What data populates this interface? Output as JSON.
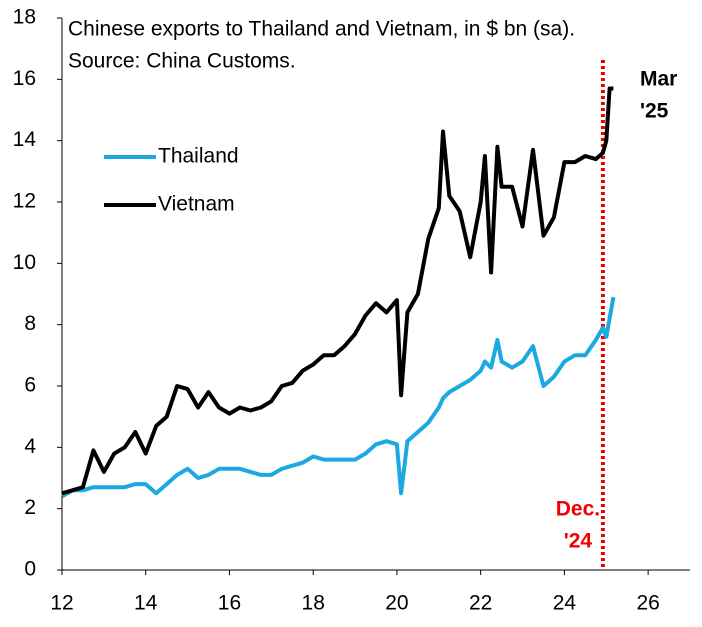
{
  "chart_data": {
    "type": "line",
    "title": "Chinese exports to Thailand and Vietnam, in $ bn (sa).",
    "source": "Source: China Customs.",
    "x": [
      12,
      12.25,
      12.5,
      12.75,
      13,
      13.25,
      13.5,
      13.75,
      14,
      14.25,
      14.5,
      14.75,
      15,
      15.25,
      15.5,
      15.75,
      16,
      16.25,
      16.5,
      16.75,
      17,
      17.25,
      17.5,
      17.75,
      18,
      18.25,
      18.5,
      18.75,
      19,
      19.25,
      19.5,
      19.75,
      20,
      20.1,
      20.25,
      20.5,
      20.75,
      21,
      21.1,
      21.25,
      21.5,
      21.75,
      22,
      22.1,
      22.25,
      22.4,
      22.5,
      22.75,
      23,
      23.25,
      23.5,
      23.75,
      24,
      24.25,
      24.5,
      24.75,
      24.92,
      25,
      25.08,
      25.17
    ],
    "series": [
      {
        "name": "Thailand",
        "color": "#1ba9e1",
        "values": [
          2.4,
          2.6,
          2.6,
          2.7,
          2.7,
          2.7,
          2.7,
          2.8,
          2.8,
          2.5,
          2.8,
          3.1,
          3.3,
          3.0,
          3.1,
          3.3,
          3.3,
          3.3,
          3.2,
          3.1,
          3.1,
          3.3,
          3.4,
          3.5,
          3.7,
          3.6,
          3.6,
          3.6,
          3.6,
          3.8,
          4.1,
          4.2,
          4.1,
          2.5,
          4.2,
          4.5,
          4.8,
          5.3,
          5.6,
          5.8,
          6.0,
          6.2,
          6.5,
          6.8,
          6.6,
          7.5,
          6.8,
          6.6,
          6.8,
          7.3,
          6.0,
          6.3,
          6.8,
          7.0,
          7.0,
          7.5,
          7.9,
          7.6,
          8.2,
          8.9
        ]
      },
      {
        "name": "Vietnam",
        "color": "#000000",
        "values": [
          2.5,
          2.6,
          2.7,
          3.9,
          3.2,
          3.8,
          4.0,
          4.5,
          3.8,
          4.7,
          5.0,
          6.0,
          5.9,
          5.3,
          5.8,
          5.3,
          5.1,
          5.3,
          5.2,
          5.3,
          5.5,
          6.0,
          6.1,
          6.5,
          6.7,
          7.0,
          7.0,
          7.3,
          7.7,
          8.3,
          8.7,
          8.4,
          8.8,
          5.7,
          8.4,
          9.0,
          10.8,
          11.8,
          14.3,
          12.2,
          11.7,
          10.2,
          12.0,
          13.5,
          9.7,
          13.8,
          12.5,
          12.5,
          11.2,
          13.7,
          10.9,
          11.5,
          13.3,
          13.3,
          13.5,
          13.4,
          13.6,
          14.0,
          15.7,
          15.7
        ]
      }
    ],
    "xlim": [
      12,
      27
    ],
    "xticks": [
      12,
      14,
      16,
      18,
      20,
      22,
      24,
      26
    ],
    "ylim": [
      0,
      18
    ],
    "yticks": [
      0,
      2,
      4,
      6,
      8,
      10,
      12,
      14,
      16,
      18
    ],
    "grid": false,
    "legend": "upper left",
    "vline": {
      "x": 24.92,
      "color": "#ee0000",
      "label": [
        "Dec.",
        "'24"
      ]
    },
    "end_label": [
      "Mar",
      "'25"
    ]
  }
}
